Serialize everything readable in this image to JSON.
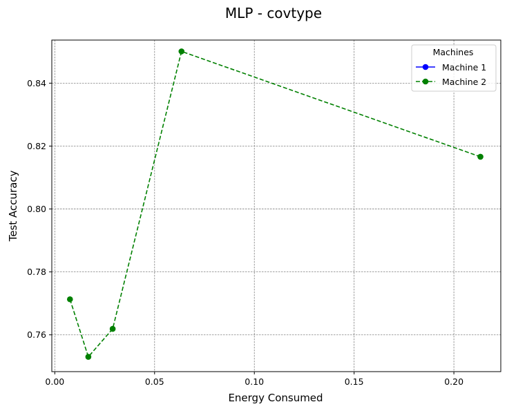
{
  "chart_data": {
    "type": "line",
    "title": "MLP - covtype",
    "xlabel": "Energy Consumed",
    "ylabel": "Test Accuracy",
    "xlim": [
      -0.0015,
      0.2235
    ],
    "ylim": [
      0.7483,
      0.8537
    ],
    "xticks": [
      0.0,
      0.05,
      0.1,
      0.15,
      0.2
    ],
    "xtick_labels": [
      "0.00",
      "0.05",
      "0.10",
      "0.15",
      "0.20"
    ],
    "yticks": [
      0.76,
      0.78,
      0.8,
      0.82,
      0.84
    ],
    "ytick_labels": [
      "0.76",
      "0.78",
      "0.80",
      "0.82",
      "0.84"
    ],
    "grid": true,
    "legend": {
      "title": "Machines",
      "placement": "top-right",
      "entries": [
        {
          "name": "Machine 1",
          "color": "#0000ff",
          "linestyle": "solid"
        },
        {
          "name": "Machine 2",
          "color": "#008000",
          "linestyle": "dashed"
        }
      ]
    },
    "series": [
      {
        "name": "Machine 2",
        "color": "#008000",
        "linestyle": "dashed",
        "marker": "circle",
        "points": [
          {
            "x": 0.0076,
            "y": 0.7713
          },
          {
            "x": 0.0168,
            "y": 0.753
          },
          {
            "x": 0.029,
            "y": 0.7619
          },
          {
            "x": 0.0635,
            "y": 0.8501
          },
          {
            "x": 0.2133,
            "y": 0.8166
          }
        ]
      }
    ]
  }
}
